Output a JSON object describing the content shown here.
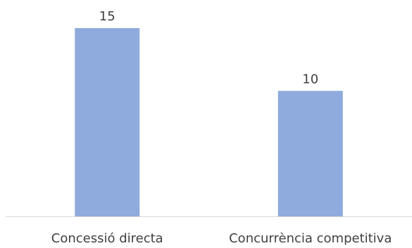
{
  "chart_data": {
    "type": "bar",
    "categories": [
      "Concessió directa",
      "Concurrència competitiva"
    ],
    "values": [
      15,
      10
    ],
    "title": "",
    "xlabel": "",
    "ylabel": "",
    "ylim": [
      0,
      15
    ],
    "grid": false,
    "legend": "none",
    "data_labels": true,
    "colors": {
      "bar": "#8faadc",
      "axis": "#d9d9d9",
      "text": "#404040"
    }
  }
}
